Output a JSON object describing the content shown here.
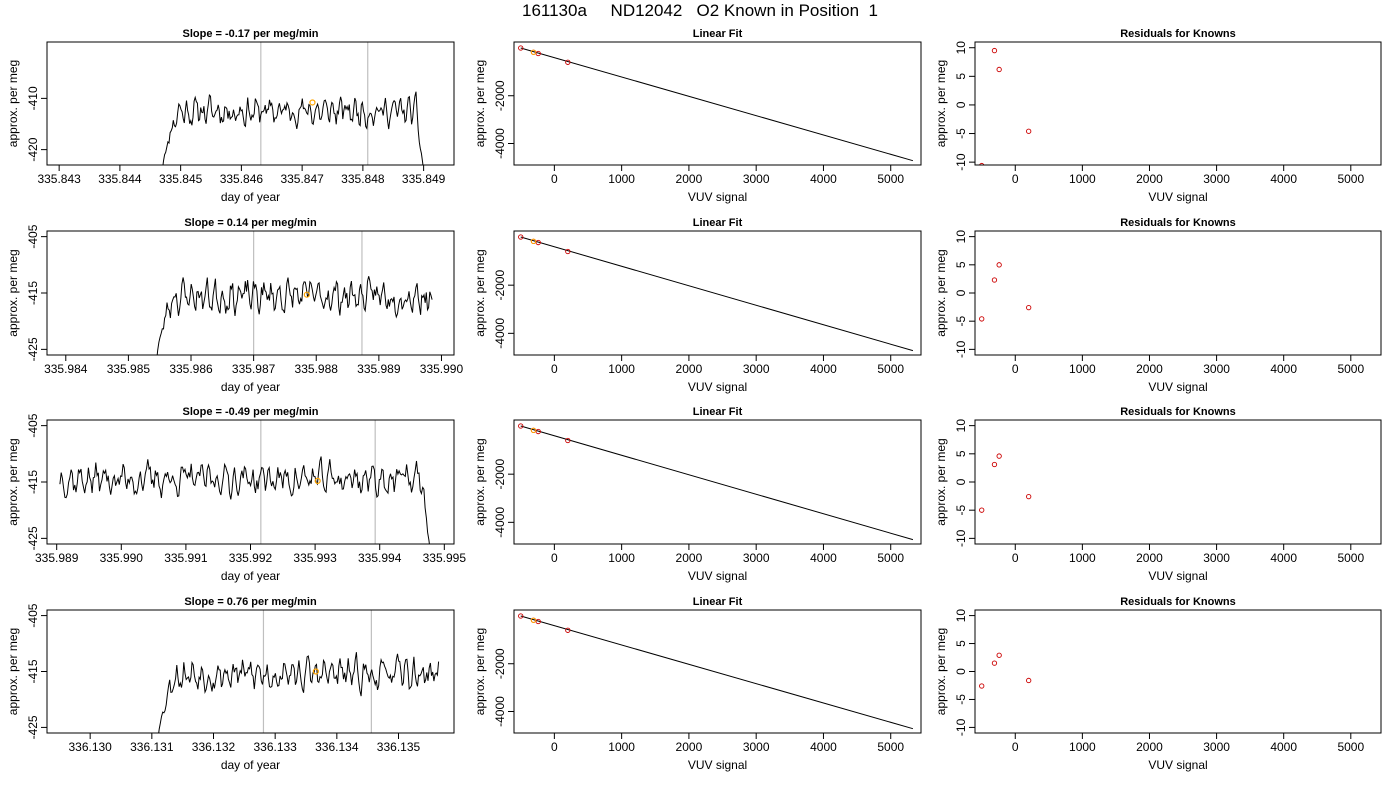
{
  "figure_title": "161130a     ND12042   O2 Known in Position  1",
  "colors": {
    "trace": "#000000",
    "highlight": "#ffa500",
    "residual": "#cc0000",
    "reference_line": "#bfbfbf",
    "frame": "#000000"
  },
  "chart_data": [
    {
      "id": "r1-slope",
      "type": "line",
      "title": "Slope =  -0.17  per meg/min",
      "xlabel": "day of year",
      "ylabel": "approx. per meg",
      "xlim": [
        335.8428,
        335.8495
      ],
      "ylim": [
        -423,
        -399
      ],
      "xticks": [
        335.843,
        335.844,
        335.845,
        335.846,
        335.847,
        335.848,
        335.849
      ],
      "xtick_labels": [
        "335.843",
        "335.844",
        "335.845",
        "335.846",
        "335.847",
        "335.848",
        "335.849"
      ],
      "yticks": [
        -410,
        -420
      ],
      "ytick_labels": [
        "-410",
        "-420"
      ],
      "x_start": 335.8447,
      "x_end": 335.849,
      "n_points": 240,
      "base": -412.5,
      "noise": 2.2,
      "seed": 11,
      "start_drop": -424,
      "end_drop": -424,
      "vlines": [
        335.84632,
        335.84808
      ],
      "highlight_point": {
        "x": 335.84717,
        "y": -410.8
      }
    },
    {
      "id": "r1-fit",
      "type": "scatter",
      "title": "Linear Fit",
      "xlabel": "VUV signal",
      "ylabel": "approx. per meg",
      "xlim": [
        -600,
        5450
      ],
      "ylim": [
        -4900,
        250
      ],
      "xticks": [
        0,
        1000,
        2000,
        3000,
        4000,
        5000
      ],
      "xtick_labels": [
        "0",
        "1000",
        "2000",
        "3000",
        "4000",
        "5000"
      ],
      "yticks": [
        -2000,
        -4000
      ],
      "ytick_labels": [
        "-2000",
        "-4000"
      ],
      "fit_line": {
        "x": [
          -500,
          5330
        ],
        "y": [
          0,
          -4720
        ]
      },
      "points": {
        "x": [
          -500,
          -310,
          -240,
          200
        ],
        "y": [
          0,
          -180,
          -230,
          -600
        ]
      },
      "highlight_points": {
        "x": [
          -310
        ],
        "y": [
          -180
        ]
      }
    },
    {
      "id": "r1-resid",
      "type": "scatter",
      "title": "Residuals for Knowns",
      "xlabel": "VUV signal",
      "ylabel": "approx. per meg",
      "xlim": [
        -600,
        5450
      ],
      "ylim": [
        -10.5,
        11
      ],
      "xticks": [
        0,
        1000,
        2000,
        3000,
        4000,
        5000
      ],
      "xtick_labels": [
        "0",
        "1000",
        "2000",
        "3000",
        "4000",
        "5000"
      ],
      "yticks": [
        10,
        5,
        0,
        -5,
        -10
      ],
      "ytick_labels": [
        "10",
        "5",
        "0",
        "-5",
        "-10"
      ],
      "points": {
        "x": [
          -500,
          -310,
          -240,
          200
        ],
        "y": [
          -10.6,
          9.5,
          6.2,
          -4.6
        ]
      }
    },
    {
      "id": "r2-slope",
      "type": "line",
      "title": "Slope =  0.14  per meg/min",
      "xlabel": "day of year",
      "ylabel": "approx. per meg",
      "xlim": [
        335.9837,
        335.9902
      ],
      "ylim": [
        -426,
        -404
      ],
      "xticks": [
        335.984,
        335.985,
        335.986,
        335.987,
        335.988,
        335.989,
        335.99
      ],
      "xtick_labels": [
        "335.984",
        "335.985",
        "335.986",
        "335.987",
        "335.988",
        "335.989",
        "335.990"
      ],
      "yticks": [
        -405,
        -415,
        -425
      ],
      "ytick_labels": [
        "-405",
        "-415",
        "-425"
      ],
      "x_start": 335.98545,
      "x_end": 335.98985,
      "n_points": 240,
      "base": -415.5,
      "noise": 2.4,
      "seed": 23,
      "start_drop": -427,
      "end_drop": null,
      "vlines": [
        335.987,
        335.98873
      ],
      "highlight_point": {
        "x": 335.98785,
        "y": -415.3
      }
    },
    {
      "id": "r2-fit",
      "type": "scatter",
      "title": "Linear Fit",
      "xlabel": "VUV signal",
      "ylabel": "approx. per meg",
      "xlim": [
        -600,
        5450
      ],
      "ylim": [
        -4900,
        250
      ],
      "xticks": [
        0,
        1000,
        2000,
        3000,
        4000,
        5000
      ],
      "xtick_labels": [
        "0",
        "1000",
        "2000",
        "3000",
        "4000",
        "5000"
      ],
      "yticks": [
        -2000,
        -4000
      ],
      "ytick_labels": [
        "-2000",
        "-4000"
      ],
      "fit_line": {
        "x": [
          -500,
          5330
        ],
        "y": [
          0,
          -4720
        ]
      },
      "points": {
        "x": [
          -500,
          -310,
          -240,
          200
        ],
        "y": [
          0,
          -180,
          -230,
          -600
        ]
      },
      "highlight_points": {
        "x": [
          -310
        ],
        "y": [
          -180
        ]
      }
    },
    {
      "id": "r2-resid",
      "type": "scatter",
      "title": "Residuals for Knowns",
      "xlabel": "VUV signal",
      "ylabel": "approx. per meg",
      "xlim": [
        -600,
        5450
      ],
      "ylim": [
        -11,
        11
      ],
      "xticks": [
        0,
        1000,
        2000,
        3000,
        4000,
        5000
      ],
      "xtick_labels": [
        "0",
        "1000",
        "2000",
        "3000",
        "4000",
        "5000"
      ],
      "yticks": [
        10,
        5,
        0,
        -5,
        -10
      ],
      "ytick_labels": [
        "10",
        "5",
        "0",
        "-5",
        "-10"
      ],
      "points": {
        "x": [
          -500,
          -310,
          -240,
          200
        ],
        "y": [
          -4.6,
          2.3,
          5.0,
          -2.6
        ]
      }
    },
    {
      "id": "r3-slope",
      "type": "line",
      "title": "Slope =  -0.49  per meg/min",
      "xlabel": "day of year",
      "ylabel": "approx. per meg",
      "xlim": [
        335.98885,
        335.99515
      ],
      "ylim": [
        -426,
        -404
      ],
      "xticks": [
        335.989,
        335.99,
        335.991,
        335.992,
        335.993,
        335.994,
        335.995
      ],
      "xtick_labels": [
        "335.989",
        "335.990",
        "335.991",
        "335.992",
        "335.993",
        "335.994",
        "335.995"
      ],
      "yticks": [
        -405,
        -415,
        -425
      ],
      "ytick_labels": [
        "-405",
        "-415",
        "-425"
      ],
      "x_start": 335.98905,
      "x_end": 335.99478,
      "n_points": 300,
      "base": -414.5,
      "noise": 2.3,
      "seed": 37,
      "start_drop": null,
      "end_drop": -427,
      "vlines": [
        335.99216,
        335.99393
      ],
      "highlight_point": {
        "x": 335.99304,
        "y": -414.8
      }
    },
    {
      "id": "r3-fit",
      "type": "scatter",
      "title": "Linear Fit",
      "xlabel": "VUV signal",
      "ylabel": "approx. per meg",
      "xlim": [
        -600,
        5450
      ],
      "ylim": [
        -4900,
        250
      ],
      "xticks": [
        0,
        1000,
        2000,
        3000,
        4000,
        5000
      ],
      "xtick_labels": [
        "0",
        "1000",
        "2000",
        "3000",
        "4000",
        "5000"
      ],
      "yticks": [
        -2000,
        -4000
      ],
      "ytick_labels": [
        "-2000",
        "-4000"
      ],
      "fit_line": {
        "x": [
          -500,
          5330
        ],
        "y": [
          0,
          -4720
        ]
      },
      "points": {
        "x": [
          -500,
          -310,
          -240,
          200
        ],
        "y": [
          0,
          -180,
          -230,
          -600
        ]
      },
      "highlight_points": {
        "x": [
          -310
        ],
        "y": [
          -180
        ]
      }
    },
    {
      "id": "r3-resid",
      "type": "scatter",
      "title": "Residuals for Knowns",
      "xlabel": "VUV signal",
      "ylabel": "approx. per meg",
      "xlim": [
        -600,
        5450
      ],
      "ylim": [
        -11,
        11
      ],
      "xticks": [
        0,
        1000,
        2000,
        3000,
        4000,
        5000
      ],
      "xtick_labels": [
        "0",
        "1000",
        "2000",
        "3000",
        "4000",
        "5000"
      ],
      "yticks": [
        10,
        5,
        0,
        -5,
        -10
      ],
      "ytick_labels": [
        "10",
        "5",
        "0",
        "-5",
        "-10"
      ],
      "points": {
        "x": [
          -500,
          -310,
          -240,
          200
        ],
        "y": [
          -5.0,
          3.1,
          4.6,
          -2.6
        ]
      }
    },
    {
      "id": "r4-slope",
      "type": "line",
      "title": "Slope =  0.76  per meg/min",
      "xlabel": "day of year",
      "ylabel": "approx. per meg",
      "xlim": [
        336.1293,
        336.1359
      ],
      "ylim": [
        -426,
        -404
      ],
      "xticks": [
        336.13,
        336.131,
        336.132,
        336.133,
        336.134,
        336.135
      ],
      "xtick_labels": [
        "336.130",
        "336.131",
        "336.132",
        "336.133",
        "336.134",
        "336.135"
      ],
      "yticks": [
        -405,
        -415,
        -425
      ],
      "ytick_labels": [
        "-405",
        "-415",
        "-425"
      ],
      "x_start": 336.1311,
      "x_end": 336.13565,
      "n_points": 240,
      "base": -415.5,
      "noise": 2.3,
      "seed": 53,
      "start_drop": -427,
      "end_drop": null,
      "vlines": [
        336.13281,
        336.13456
      ],
      "highlight_point": {
        "x": 336.13366,
        "y": -415.0
      }
    },
    {
      "id": "r4-fit",
      "type": "scatter",
      "title": "Linear Fit",
      "xlabel": "VUV signal",
      "ylabel": "approx. per meg",
      "xlim": [
        -600,
        5450
      ],
      "ylim": [
        -4900,
        250
      ],
      "xticks": [
        0,
        1000,
        2000,
        3000,
        4000,
        5000
      ],
      "xtick_labels": [
        "0",
        "1000",
        "2000",
        "3000",
        "4000",
        "5000"
      ],
      "yticks": [
        -2000,
        -4000
      ],
      "ytick_labels": [
        "-2000",
        "-4000"
      ],
      "fit_line": {
        "x": [
          -500,
          5330
        ],
        "y": [
          0,
          -4720
        ]
      },
      "points": {
        "x": [
          -500,
          -310,
          -240,
          200
        ],
        "y": [
          0,
          -180,
          -230,
          -600
        ]
      },
      "highlight_points": {
        "x": [
          -310
        ],
        "y": [
          -180
        ]
      }
    },
    {
      "id": "r4-resid",
      "type": "scatter",
      "title": "Residuals for Knowns",
      "xlabel": "VUV signal",
      "ylabel": "approx. per meg",
      "xlim": [
        -600,
        5450
      ],
      "ylim": [
        -11,
        11
      ],
      "xticks": [
        0,
        1000,
        2000,
        3000,
        4000,
        5000
      ],
      "xtick_labels": [
        "0",
        "1000",
        "2000",
        "3000",
        "4000",
        "5000"
      ],
      "yticks": [
        10,
        5,
        0,
        -5,
        -10
      ],
      "ytick_labels": [
        "10",
        "5",
        "0",
        "-5",
        "-10"
      ],
      "points": {
        "x": [
          -500,
          -310,
          -240,
          200
        ],
        "y": [
          -2.6,
          1.5,
          2.9,
          -1.6
        ]
      }
    }
  ]
}
